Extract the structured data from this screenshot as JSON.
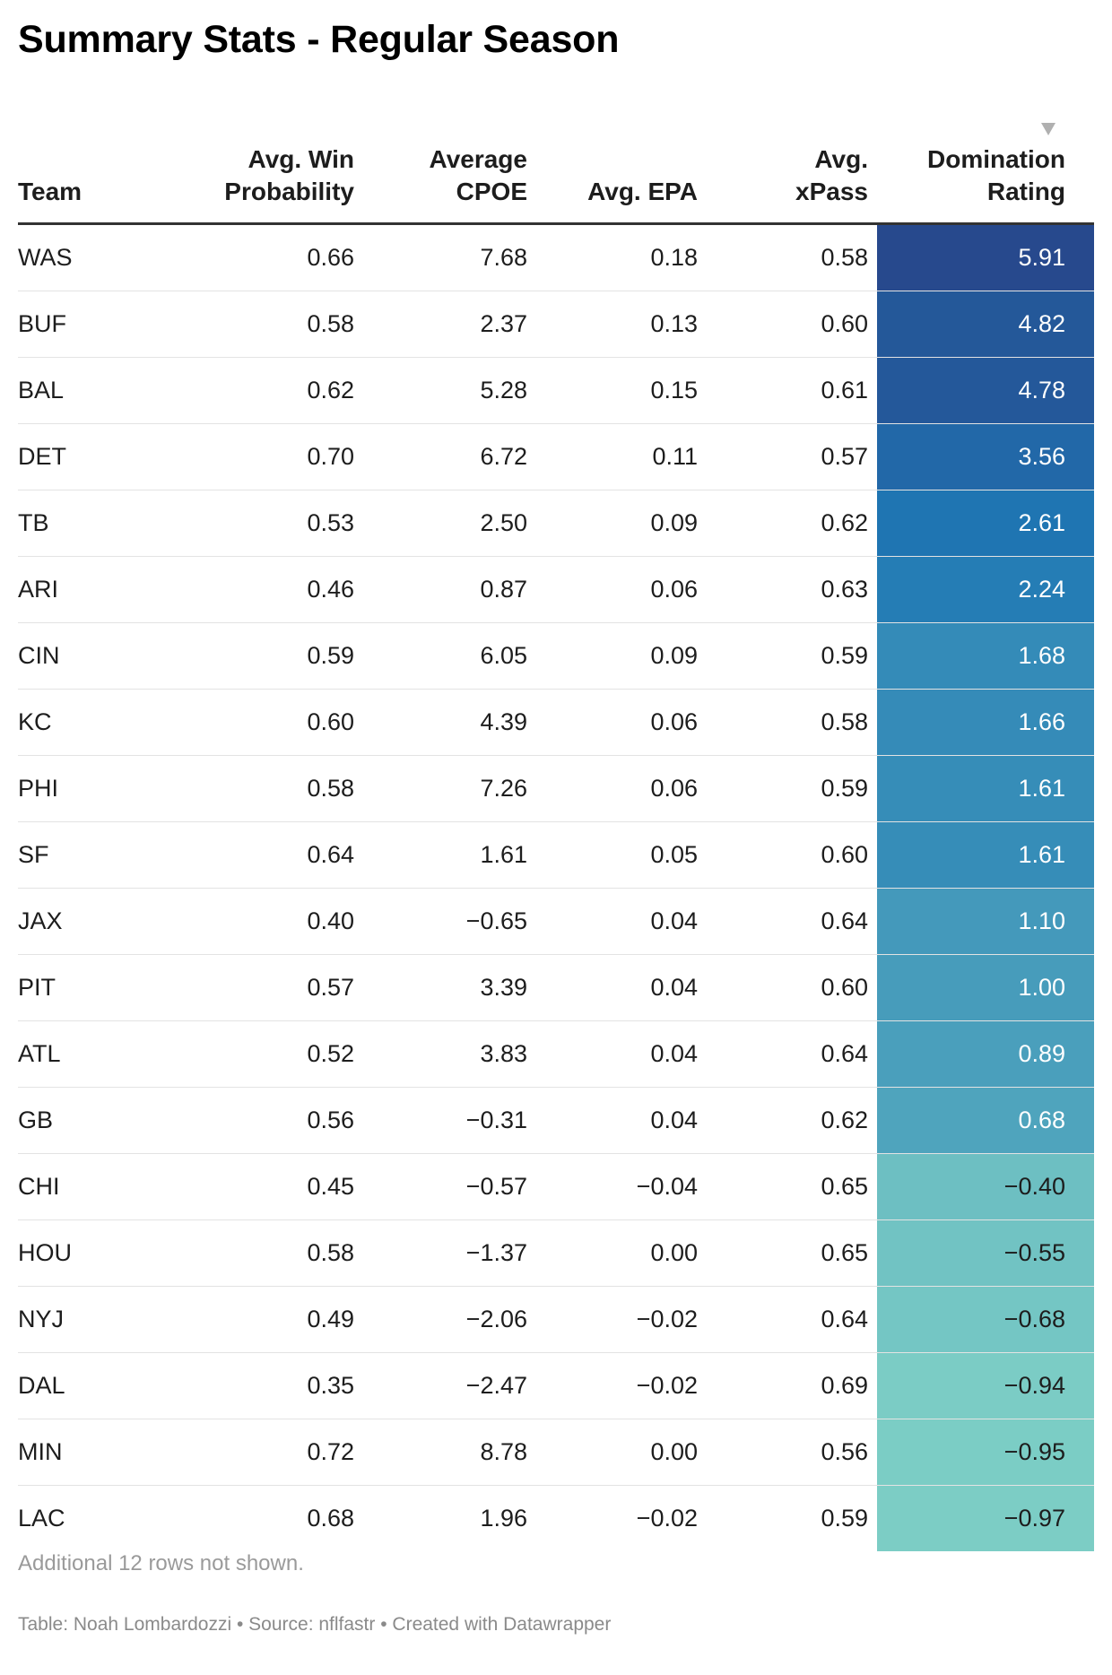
{
  "title": "Summary Stats - Regular Season",
  "columns": {
    "team": "Team",
    "win_prob_l1": "Avg. Win",
    "win_prob_l2": "Probability",
    "cpoe_l1": "Average",
    "cpoe_l2": "CPOE",
    "epa": "Avg. EPA",
    "xpass_l1": "Avg.",
    "xpass_l2": "xPass",
    "dom_l1": "Domination",
    "dom_l2": "Rating"
  },
  "sort": {
    "column": "Domination Rating",
    "direction": "descending",
    "icon": "sort-descending-icon"
  },
  "heat_colors": {
    "high": "#27498d",
    "low": "#7ccdc5"
  },
  "chart_data": {
    "type": "table",
    "title": "Summary Stats - Regular Season",
    "headers": [
      "Team",
      "Avg. Win Probability",
      "Average CPOE",
      "Avg. EPA",
      "Avg. xPass",
      "Domination Rating"
    ],
    "rows": [
      [
        "WAS",
        "0.66",
        "7.68",
        "0.18",
        "0.58",
        "5.91"
      ],
      [
        "BUF",
        "0.58",
        "2.37",
        "0.13",
        "0.60",
        "4.82"
      ],
      [
        "BAL",
        "0.62",
        "5.28",
        "0.15",
        "0.61",
        "4.78"
      ],
      [
        "DET",
        "0.70",
        "6.72",
        "0.11",
        "0.57",
        "3.56"
      ],
      [
        "TB",
        "0.53",
        "2.50",
        "0.09",
        "0.62",
        "2.61"
      ],
      [
        "ARI",
        "0.46",
        "0.87",
        "0.06",
        "0.63",
        "2.24"
      ],
      [
        "CIN",
        "0.59",
        "6.05",
        "0.09",
        "0.59",
        "1.68"
      ],
      [
        "KC",
        "0.60",
        "4.39",
        "0.06",
        "0.58",
        "1.66"
      ],
      [
        "PHI",
        "0.58",
        "7.26",
        "0.06",
        "0.59",
        "1.61"
      ],
      [
        "SF",
        "0.64",
        "1.61",
        "0.05",
        "0.60",
        "1.61"
      ],
      [
        "JAX",
        "0.40",
        "−0.65",
        "0.04",
        "0.64",
        "1.10"
      ],
      [
        "PIT",
        "0.57",
        "3.39",
        "0.04",
        "0.60",
        "1.00"
      ],
      [
        "ATL",
        "0.52",
        "3.83",
        "0.04",
        "0.64",
        "0.89"
      ],
      [
        "GB",
        "0.56",
        "−0.31",
        "0.04",
        "0.62",
        "0.68"
      ],
      [
        "CHI",
        "0.45",
        "−0.57",
        "−0.04",
        "0.65",
        "−0.40"
      ],
      [
        "HOU",
        "0.58",
        "−1.37",
        "0.00",
        "0.65",
        "−0.55"
      ],
      [
        "NYJ",
        "0.49",
        "−2.06",
        "−0.02",
        "0.64",
        "−0.68"
      ],
      [
        "DAL",
        "0.35",
        "−2.47",
        "−0.02",
        "0.69",
        "−0.94"
      ],
      [
        "MIN",
        "0.72",
        "8.78",
        "0.00",
        "0.56",
        "−0.95"
      ],
      [
        "LAC",
        "0.68",
        "1.96",
        "−0.02",
        "0.59",
        "−0.97"
      ]
    ]
  },
  "note": "Additional 12 rows not shown.",
  "footer": "Table: Noah Lombardozzi • Source: nflfastr • Created with Datawrapper"
}
